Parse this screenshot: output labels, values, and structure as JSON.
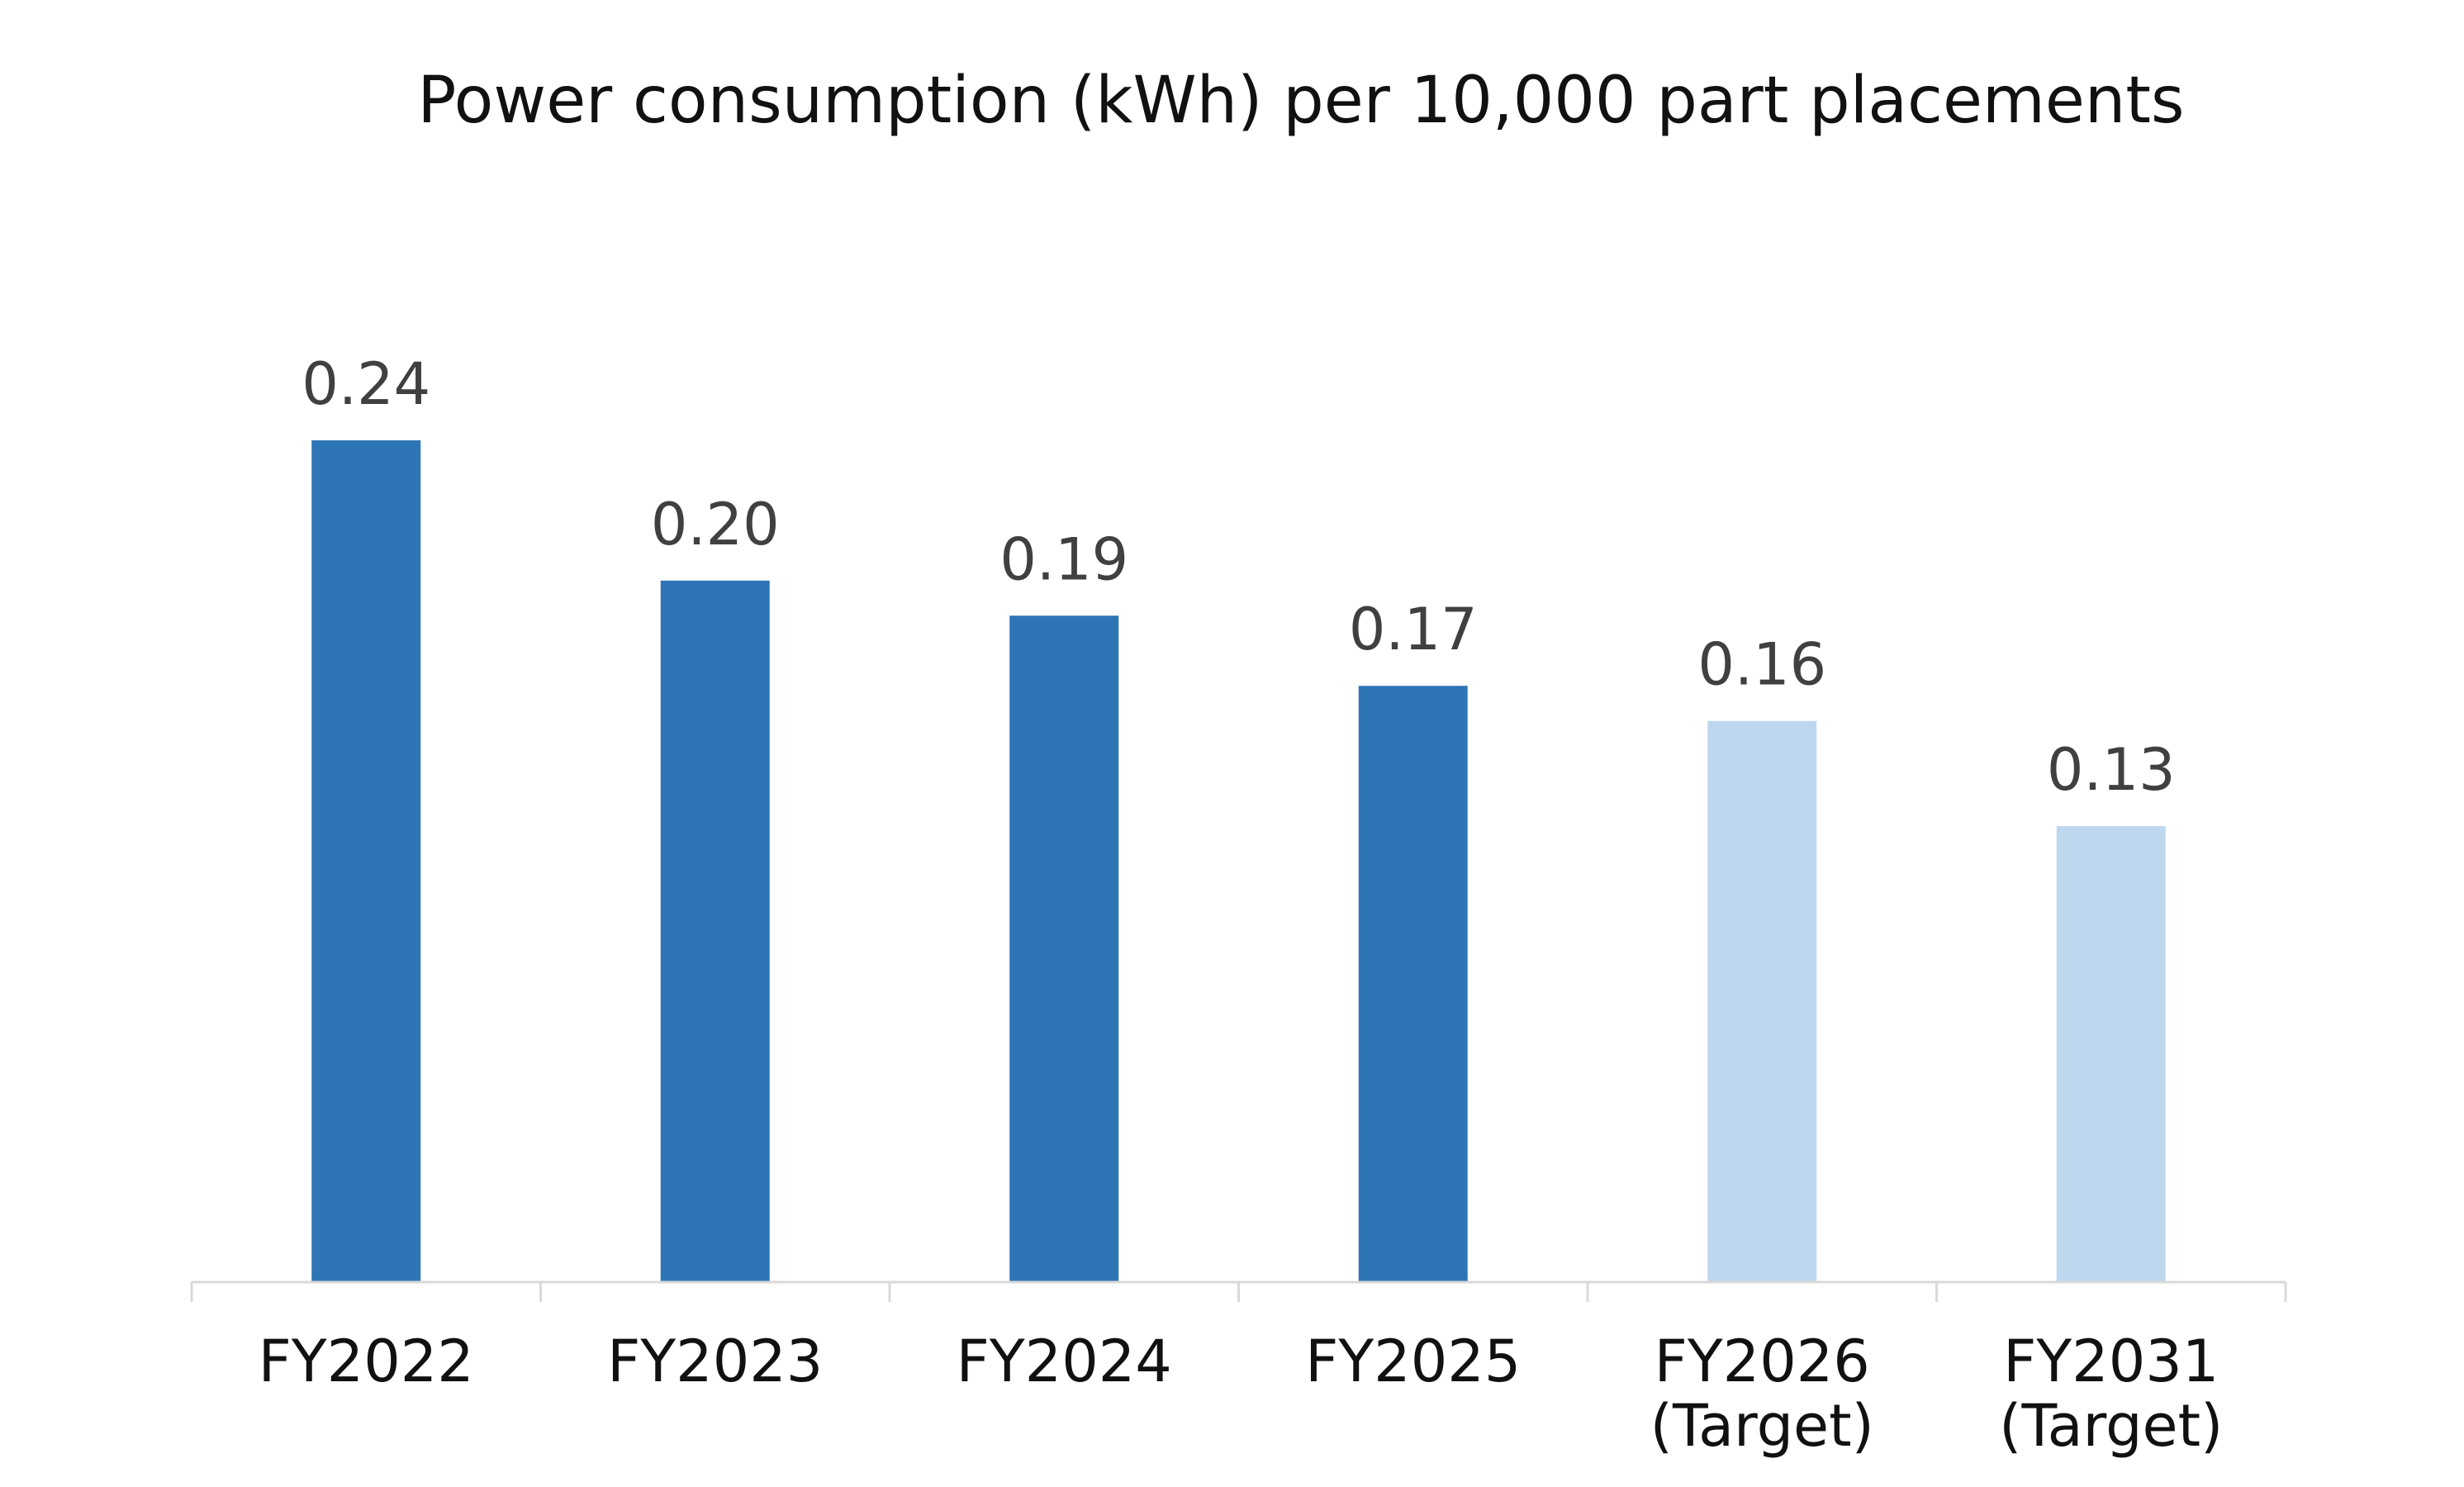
{
  "chart_data": {
    "type": "bar",
    "title": "Power consumption (kWh) per 10,000 part placements",
    "xlabel": "",
    "ylabel": "",
    "categories": [
      [
        "FY2022"
      ],
      [
        "FY2023"
      ],
      [
        "FY2024"
      ],
      [
        "FY2025"
      ],
      [
        "FY2026",
        "(Target)"
      ],
      [
        "FY2031",
        "(Target)"
      ]
    ],
    "values": [
      0.24,
      0.2,
      0.19,
      0.17,
      0.16,
      0.13
    ],
    "value_labels": [
      "0.24",
      "0.20",
      "0.19",
      "0.17",
      "0.16",
      "0.13"
    ],
    "is_target": [
      false,
      false,
      false,
      false,
      true,
      true
    ],
    "ylim": [
      0,
      0.24
    ],
    "grid": false,
    "legend": "none",
    "colors": {
      "actual": "#2e75b6",
      "target": "#bdd7ee",
      "axis": "#d9d9d9",
      "label": "#404040",
      "text": "#111111"
    }
  }
}
